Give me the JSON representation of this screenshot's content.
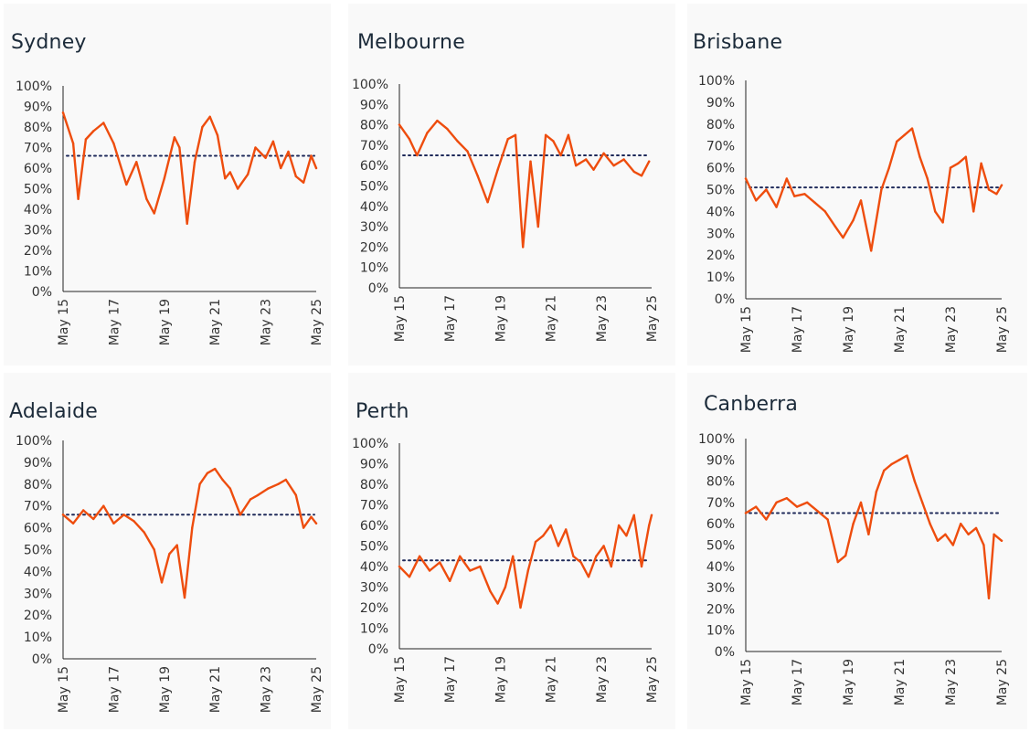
{
  "chart_data": [
    {
      "type": "line",
      "title": "Sydney",
      "ylim": [
        0,
        100
      ],
      "y_ticks": [
        "0%",
        "10%",
        "20%",
        "30%",
        "40%",
        "50%",
        "60%",
        "70%",
        "80%",
        "90%",
        "100%"
      ],
      "x_ticks": [
        "May 15",
        "May 17",
        "May 19",
        "May 21",
        "May 23",
        "May 25"
      ],
      "average": 66,
      "series": [
        {
          "x": [
            2015.4,
            2015.8,
            2016.0,
            2016.3,
            2016.6,
            2017.0,
            2017.4,
            2017.9,
            2018.3,
            2018.7,
            2019.0,
            2019.4,
            2019.8,
            2020.0,
            2020.3,
            2020.6,
            2020.9,
            2021.2,
            2021.5,
            2021.8,
            2022.0,
            2022.3,
            2022.7,
            2023.0,
            2023.4,
            2023.7,
            2024.0,
            2024.3,
            2024.6,
            2024.9,
            2025.2,
            2025.4
          ],
          "values": [
            87,
            72,
            45,
            74,
            78,
            82,
            72,
            52,
            63,
            45,
            38,
            55,
            75,
            70,
            33,
            63,
            80,
            85,
            76,
            55,
            58,
            50,
            57,
            70,
            65,
            73,
            60,
            68,
            56,
            53,
            66,
            60
          ]
        }
      ]
    },
    {
      "type": "line",
      "title": "Melbourne",
      "ylim": [
        0,
        100
      ],
      "y_ticks": [
        "0%",
        "10%",
        "20%",
        "30%",
        "40%",
        "50%",
        "60%",
        "70%",
        "80%",
        "90%",
        "100%"
      ],
      "x_ticks": [
        "May 15",
        "May 17",
        "May 19",
        "May 21",
        "May 23",
        "May 25"
      ],
      "average": 65,
      "series": [
        {
          "x": [
            2015.4,
            2015.8,
            2016.1,
            2016.5,
            2016.9,
            2017.3,
            2017.7,
            2018.1,
            2018.5,
            2018.9,
            2019.3,
            2019.7,
            2020.0,
            2020.3,
            2020.6,
            2020.9,
            2021.2,
            2021.5,
            2021.8,
            2022.1,
            2022.4,
            2022.8,
            2023.1,
            2023.5,
            2023.9,
            2024.3,
            2024.7,
            2025.0,
            2025.3
          ],
          "values": [
            80,
            73,
            65,
            76,
            82,
            78,
            72,
            67,
            55,
            42,
            58,
            73,
            75,
            20,
            62,
            30,
            75,
            72,
            65,
            75,
            60,
            63,
            58,
            66,
            60,
            63,
            57,
            55,
            62
          ]
        }
      ]
    },
    {
      "type": "line",
      "title": "Brisbane",
      "ylim": [
        0,
        100
      ],
      "y_ticks": [
        "0%",
        "10%",
        "20%",
        "30%",
        "40%",
        "50%",
        "60%",
        "70%",
        "80%",
        "90%",
        "100%"
      ],
      "x_ticks": [
        "May 15",
        "May 17",
        "May 19",
        "May 21",
        "May 23",
        "May 25"
      ],
      "average": 51,
      "series": [
        {
          "x": [
            2015.4,
            2015.8,
            2016.2,
            2016.6,
            2017.0,
            2017.3,
            2017.7,
            2018.1,
            2018.5,
            2018.9,
            2019.2,
            2019.6,
            2019.9,
            2020.3,
            2020.7,
            2021.0,
            2021.3,
            2021.6,
            2021.9,
            2022.2,
            2022.5,
            2022.8,
            2023.1,
            2023.4,
            2023.7,
            2024.0,
            2024.3,
            2024.6,
            2024.9,
            2025.2,
            2025.4
          ],
          "values": [
            55,
            45,
            50,
            42,
            55,
            47,
            48,
            44,
            40,
            33,
            28,
            36,
            45,
            22,
            50,
            60,
            72,
            75,
            78,
            65,
            55,
            40,
            35,
            60,
            62,
            65,
            40,
            62,
            50,
            48,
            52
          ]
        }
      ]
    },
    {
      "type": "line",
      "title": "Adelaide",
      "ylim": [
        0,
        100
      ],
      "y_ticks": [
        "0%",
        "10%",
        "20%",
        "30%",
        "40%",
        "50%",
        "60%",
        "70%",
        "80%",
        "90%",
        "100%"
      ],
      "x_ticks": [
        "May 15",
        "May 17",
        "May 19",
        "May 21",
        "May 23",
        "May 25"
      ],
      "average": 66,
      "series": [
        {
          "x": [
            2015.4,
            2015.8,
            2016.2,
            2016.6,
            2017.0,
            2017.4,
            2017.8,
            2018.2,
            2018.6,
            2019.0,
            2019.3,
            2019.6,
            2019.9,
            2020.2,
            2020.5,
            2020.8,
            2021.1,
            2021.4,
            2021.7,
            2022.0,
            2022.4,
            2022.8,
            2023.1,
            2023.5,
            2023.9,
            2024.2,
            2024.6,
            2024.9,
            2025.2,
            2025.4
          ],
          "values": [
            66,
            62,
            68,
            64,
            70,
            62,
            66,
            63,
            58,
            50,
            35,
            48,
            52,
            28,
            60,
            80,
            85,
            87,
            82,
            78,
            66,
            73,
            75,
            78,
            80,
            82,
            75,
            60,
            65,
            62
          ]
        }
      ]
    },
    {
      "type": "line",
      "title": "Perth",
      "ylim": [
        0,
        100
      ],
      "y_ticks": [
        "0%",
        "10%",
        "20%",
        "30%",
        "40%",
        "50%",
        "60%",
        "70%",
        "80%",
        "90%",
        "100%"
      ],
      "x_ticks": [
        "May 15",
        "May 17",
        "May 19",
        "May 21",
        "May 23",
        "May 25"
      ],
      "average": 43,
      "series": [
        {
          "x": [
            2015.4,
            2015.8,
            2016.2,
            2016.6,
            2017.0,
            2017.4,
            2017.8,
            2018.2,
            2018.6,
            2019.0,
            2019.3,
            2019.6,
            2019.9,
            2020.2,
            2020.5,
            2020.8,
            2021.1,
            2021.4,
            2021.7,
            2022.0,
            2022.3,
            2022.6,
            2022.9,
            2023.2,
            2023.5,
            2023.8,
            2024.1,
            2024.4,
            2024.7,
            2025.0,
            2025.3,
            2025.4
          ],
          "values": [
            40,
            35,
            45,
            38,
            42,
            33,
            45,
            38,
            40,
            28,
            22,
            30,
            45,
            20,
            38,
            52,
            55,
            60,
            50,
            58,
            45,
            42,
            35,
            45,
            50,
            40,
            60,
            55,
            65,
            40,
            60,
            65
          ]
        }
      ]
    },
    {
      "type": "line",
      "title": "Canberra",
      "ylim": [
        0,
        100
      ],
      "y_ticks": [
        "0%",
        "10%",
        "20%",
        "30%",
        "40%",
        "50%",
        "60%",
        "70%",
        "80%",
        "90%",
        "100%"
      ],
      "x_ticks": [
        "May 15",
        "May 17",
        "May 19",
        "May 21",
        "May 23",
        "May 25"
      ],
      "average": 65,
      "series": [
        {
          "x": [
            2015.4,
            2015.8,
            2016.2,
            2016.6,
            2017.0,
            2017.4,
            2017.8,
            2018.2,
            2018.6,
            2019.0,
            2019.3,
            2019.6,
            2019.9,
            2020.2,
            2020.5,
            2020.8,
            2021.1,
            2021.4,
            2021.7,
            2022.0,
            2022.3,
            2022.6,
            2022.9,
            2023.2,
            2023.5,
            2023.8,
            2024.1,
            2024.4,
            2024.7,
            2024.9,
            2025.1,
            2025.4
          ],
          "values": [
            65,
            68,
            62,
            70,
            72,
            68,
            70,
            66,
            62,
            42,
            45,
            60,
            70,
            55,
            75,
            85,
            88,
            90,
            92,
            80,
            70,
            60,
            52,
            55,
            50,
            60,
            55,
            58,
            50,
            25,
            55,
            52
          ]
        }
      ]
    }
  ],
  "colors": {
    "line": "#ee4d0e",
    "line_thin": "#f2762e",
    "average": "#1f2a5a",
    "axis": "#222222",
    "panel": "#f9f9f9"
  }
}
